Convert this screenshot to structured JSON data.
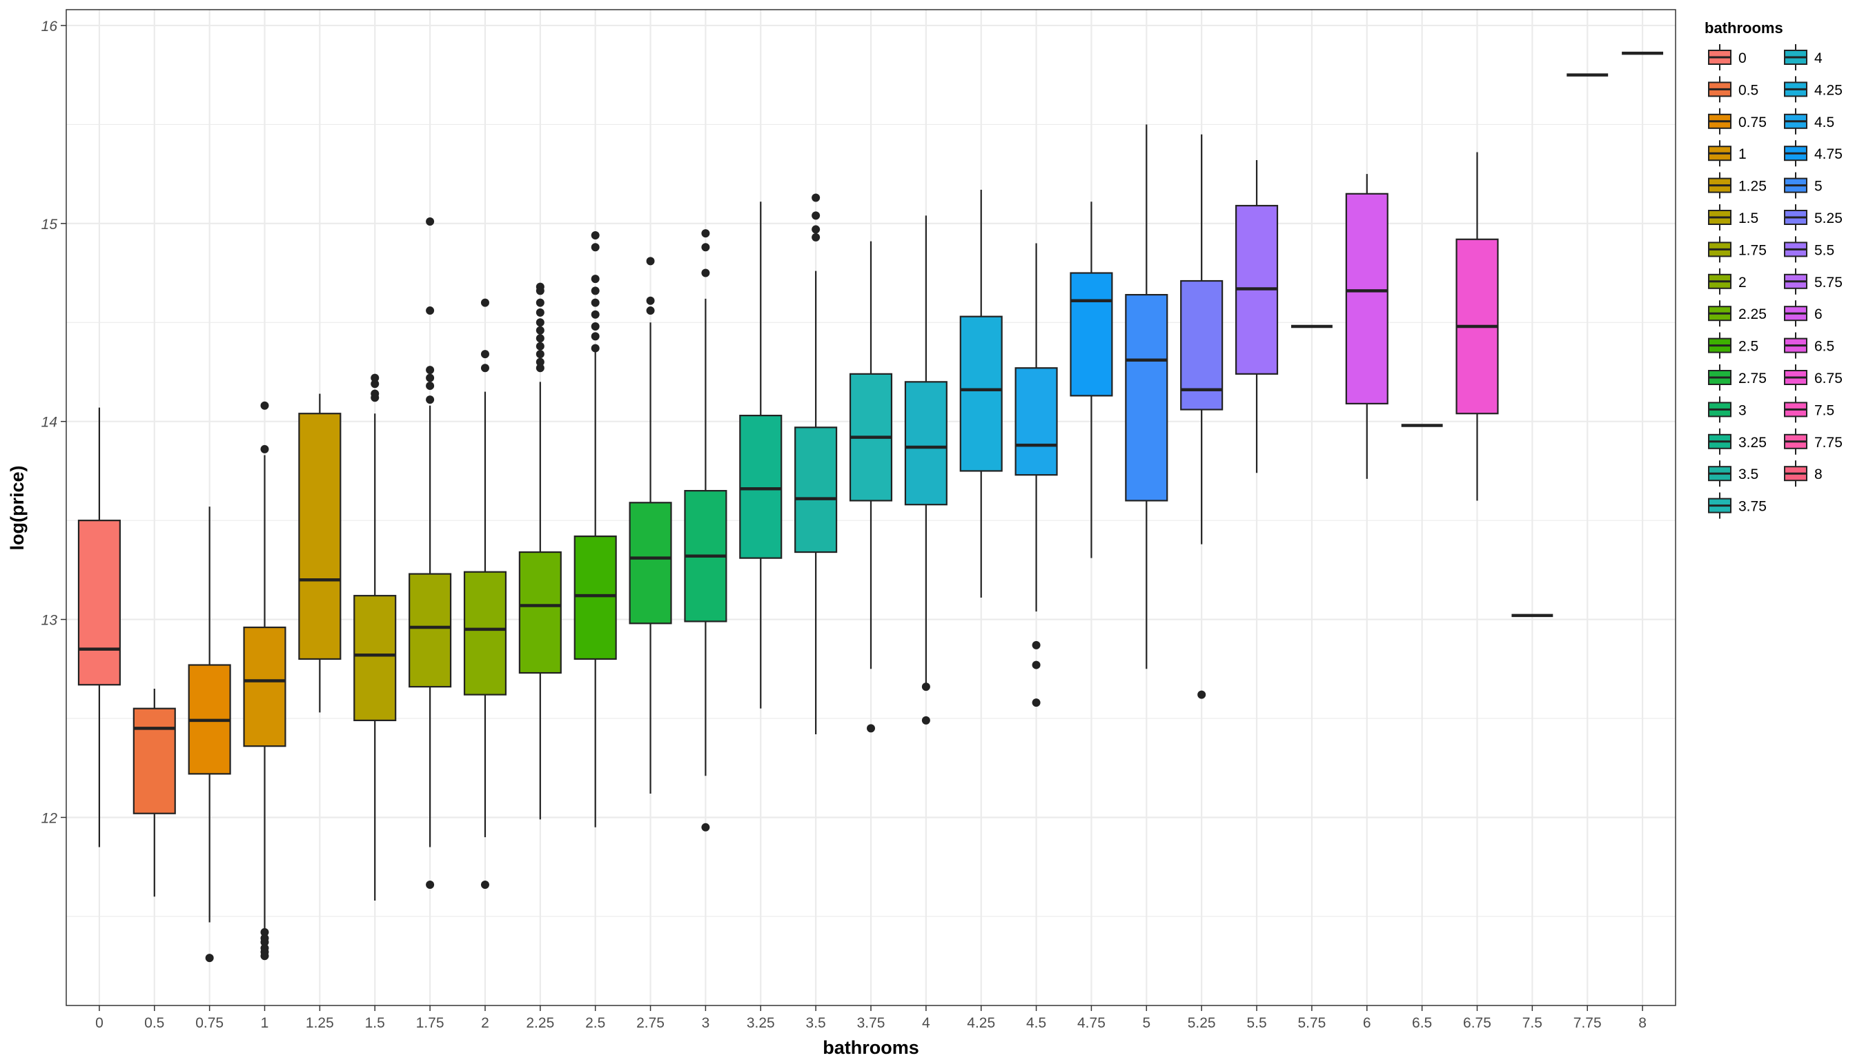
{
  "chart_data": {
    "type": "boxplot",
    "xlabel": "bathrooms",
    "ylabel": "log(price)",
    "ylim": [
      11.05,
      16.08
    ],
    "y_ticks": [
      "12",
      "13",
      "14",
      "15",
      "16"
    ],
    "grid": true,
    "legend_title": "bathrooms",
    "legend_position": "right",
    "categories": [
      "0",
      "0.5",
      "0.75",
      "1",
      "1.25",
      "1.5",
      "1.75",
      "2",
      "2.25",
      "2.5",
      "2.75",
      "3",
      "3.25",
      "3.5",
      "3.75",
      "4",
      "4.25",
      "4.5",
      "4.75",
      "5",
      "5.25",
      "5.5",
      "5.75",
      "6",
      "6.5",
      "6.75",
      "7.5",
      "7.75",
      "8"
    ],
    "colors": [
      "#F8766D",
      "#EE7440",
      "#E38900",
      "#D39200",
      "#C49A00",
      "#B1A100",
      "#9DA700",
      "#86AC00",
      "#6AB100",
      "#3DB100",
      "#1DB43C",
      "#12B468",
      "#12B48C",
      "#1DB3A3",
      "#20B5B2",
      "#1EB1C4",
      "#1AAEDB",
      "#1CA6EA",
      "#119CF5",
      "#3D8DF9",
      "#7A7DF9",
      "#9F74FA",
      "#B86CF6",
      "#D65EEF",
      "#E458E3",
      "#F055D2",
      "#F855BD",
      "#FB5AA8",
      "#F8617F"
    ],
    "boxes": [
      {
        "q1": 12.67,
        "median": 12.85,
        "q3": 13.5,
        "lo": 11.85,
        "hi": 14.07,
        "outliers": []
      },
      {
        "q1": 12.02,
        "median": 12.45,
        "q3": 12.55,
        "lo": 11.6,
        "hi": 12.65,
        "outliers": []
      },
      {
        "q1": 12.22,
        "median": 12.49,
        "q3": 12.77,
        "lo": 11.47,
        "hi": 13.57,
        "outliers": [
          11.29
        ]
      },
      {
        "q1": 12.36,
        "median": 12.69,
        "q3": 12.96,
        "lo": 11.43,
        "hi": 13.83,
        "outliers": [
          14.08,
          13.86,
          11.42,
          11.39,
          11.37,
          11.34,
          11.32,
          11.3
        ]
      },
      {
        "q1": 12.8,
        "median": 13.2,
        "q3": 14.04,
        "lo": 12.53,
        "hi": 14.14,
        "outliers": []
      },
      {
        "q1": 12.49,
        "median": 12.82,
        "q3": 13.12,
        "lo": 11.58,
        "hi": 14.04,
        "outliers": [
          14.22,
          14.19,
          14.14,
          14.12
        ]
      },
      {
        "q1": 12.66,
        "median": 12.96,
        "q3": 13.23,
        "lo": 11.85,
        "hi": 14.08,
        "outliers": [
          15.01,
          14.56,
          14.26,
          14.22,
          14.18,
          14.11,
          11.66
        ]
      },
      {
        "q1": 12.62,
        "median": 12.95,
        "q3": 13.24,
        "lo": 11.9,
        "hi": 14.15,
        "outliers": [
          14.6,
          14.34,
          14.27,
          11.66
        ]
      },
      {
        "q1": 12.73,
        "median": 13.07,
        "q3": 13.34,
        "lo": 11.99,
        "hi": 14.2,
        "outliers": [
          14.68,
          14.66,
          14.6,
          14.55,
          14.5,
          14.46,
          14.42,
          14.38,
          14.34,
          14.3,
          14.27
        ]
      },
      {
        "q1": 12.8,
        "median": 13.12,
        "q3": 13.42,
        "lo": 11.95,
        "hi": 14.35,
        "outliers": [
          14.94,
          14.88,
          14.72,
          14.66,
          14.6,
          14.54,
          14.48,
          14.43,
          14.37
        ]
      },
      {
        "q1": 12.98,
        "median": 13.31,
        "q3": 13.59,
        "lo": 12.12,
        "hi": 14.5,
        "outliers": [
          14.81,
          14.61,
          14.56
        ]
      },
      {
        "q1": 12.99,
        "median": 13.32,
        "q3": 13.65,
        "lo": 12.21,
        "hi": 14.62,
        "outliers": [
          14.95,
          14.88,
          14.75,
          11.95
        ]
      },
      {
        "q1": 13.31,
        "median": 13.66,
        "q3": 14.03,
        "lo": 12.55,
        "hi": 15.11,
        "outliers": []
      },
      {
        "q1": 13.34,
        "median": 13.61,
        "q3": 13.97,
        "lo": 12.42,
        "hi": 14.76,
        "outliers": [
          15.13,
          15.04,
          14.97,
          14.93
        ]
      },
      {
        "q1": 13.6,
        "median": 13.92,
        "q3": 14.24,
        "lo": 12.75,
        "hi": 14.91,
        "outliers": [
          12.45
        ]
      },
      {
        "q1": 13.58,
        "median": 13.87,
        "q3": 14.2,
        "lo": 12.66,
        "hi": 15.04,
        "outliers": [
          12.66,
          12.49
        ]
      },
      {
        "q1": 13.75,
        "median": 14.16,
        "q3": 14.53,
        "lo": 13.11,
        "hi": 15.17,
        "outliers": []
      },
      {
        "q1": 13.73,
        "median": 13.88,
        "q3": 14.27,
        "lo": 13.04,
        "hi": 14.9,
        "outliers": [
          12.87,
          12.77,
          12.58
        ]
      },
      {
        "q1": 14.13,
        "median": 14.61,
        "q3": 14.75,
        "lo": 13.31,
        "hi": 15.11,
        "outliers": []
      },
      {
        "q1": 13.6,
        "median": 14.31,
        "q3": 14.64,
        "lo": 12.75,
        "hi": 15.5,
        "outliers": []
      },
      {
        "q1": 14.06,
        "median": 14.16,
        "q3": 14.71,
        "lo": 13.38,
        "hi": 15.45,
        "outliers": [
          12.62
        ]
      },
      {
        "q1": 14.24,
        "median": 14.67,
        "q3": 15.09,
        "lo": 13.74,
        "hi": 15.32,
        "outliers": []
      },
      {
        "q1": 14.48,
        "median": 14.48,
        "q3": 14.48,
        "lo": 14.48,
        "hi": 14.48,
        "outliers": []
      },
      {
        "q1": 14.09,
        "median": 14.66,
        "q3": 15.15,
        "lo": 13.71,
        "hi": 15.25,
        "outliers": []
      },
      {
        "q1": 13.98,
        "median": 13.98,
        "q3": 13.98,
        "lo": 13.98,
        "hi": 13.98,
        "outliers": []
      },
      {
        "q1": 14.04,
        "median": 14.48,
        "q3": 14.92,
        "lo": 13.6,
        "hi": 15.36,
        "outliers": []
      },
      {
        "q1": 13.02,
        "median": 13.02,
        "q3": 13.02,
        "lo": 13.02,
        "hi": 13.02,
        "outliers": []
      },
      {
        "q1": 15.75,
        "median": 15.75,
        "q3": 15.75,
        "lo": 15.75,
        "hi": 15.75,
        "outliers": []
      },
      {
        "q1": 15.86,
        "median": 15.86,
        "q3": 15.86,
        "lo": 15.86,
        "hi": 15.86,
        "outliers": []
      }
    ]
  }
}
